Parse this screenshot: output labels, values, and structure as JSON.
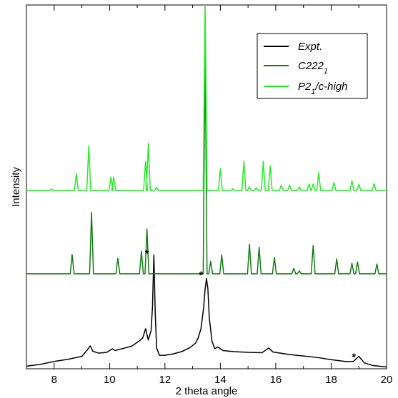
{
  "chart_data": {
    "type": "line",
    "title": "",
    "xlabel": "2 theta angle",
    "ylabel": "Intensity",
    "xlim": [
      7,
      20
    ],
    "ylim": [
      0,
      100
    ],
    "xticks": [
      8,
      10,
      12,
      14,
      16,
      18,
      20
    ],
    "x_tick_labels": [
      "8",
      "10",
      "12",
      "14",
      "16",
      "18",
      "20"
    ],
    "y_tick_labels_shown": false,
    "grid": false,
    "legend_position": "top-right",
    "series": [
      {
        "name": "Expt.",
        "name_main": "Expt.",
        "name_sub": "",
        "name_tail": "",
        "color": "#000000",
        "points": [
          [
            7.0,
            0.7
          ],
          [
            7.5,
            1.2
          ],
          [
            8.0,
            2.0
          ],
          [
            8.5,
            2.6
          ],
          [
            9.0,
            3.4
          ],
          [
            9.2,
            5.2
          ],
          [
            9.3,
            6.3
          ],
          [
            9.4,
            4.8
          ],
          [
            9.6,
            4.3
          ],
          [
            9.9,
            4.5
          ],
          [
            10.1,
            5.5
          ],
          [
            10.2,
            5.0
          ],
          [
            10.5,
            5.6
          ],
          [
            10.8,
            6.2
          ],
          [
            11.1,
            7.8
          ],
          [
            11.2,
            8.5
          ],
          [
            11.3,
            11.0
          ],
          [
            11.4,
            7.9
          ],
          [
            11.5,
            10.5
          ],
          [
            11.55,
            17.0
          ],
          [
            11.6,
            31.3
          ],
          [
            11.65,
            15.0
          ],
          [
            11.7,
            5.7
          ],
          [
            11.8,
            3.7
          ],
          [
            12.0,
            3.7
          ],
          [
            12.3,
            4.1
          ],
          [
            12.6,
            4.7
          ],
          [
            12.9,
            5.8
          ],
          [
            13.1,
            7.0
          ],
          [
            13.2,
            8.5
          ],
          [
            13.3,
            11.0
          ],
          [
            13.4,
            17.0
          ],
          [
            13.45,
            22.0
          ],
          [
            13.5,
            24.8
          ],
          [
            13.55,
            22.0
          ],
          [
            13.6,
            14.0
          ],
          [
            13.7,
            7.5
          ],
          [
            13.8,
            5.5
          ],
          [
            13.9,
            6.0
          ],
          [
            14.1,
            5.0
          ],
          [
            14.5,
            4.7
          ],
          [
            15.0,
            4.5
          ],
          [
            15.5,
            4.4
          ],
          [
            15.75,
            5.7
          ],
          [
            15.9,
            4.6
          ],
          [
            16.5,
            3.9
          ],
          [
            17.0,
            3.5
          ],
          [
            17.5,
            3.1
          ],
          [
            18.0,
            2.5
          ],
          [
            18.5,
            2.0
          ],
          [
            18.8,
            2.0
          ],
          [
            19.0,
            3.4
          ],
          [
            19.2,
            1.6
          ],
          [
            19.5,
            0.9
          ],
          [
            20.0,
            0.5
          ]
        ]
      },
      {
        "name": "C222_1",
        "name_main": "C222",
        "name_sub": "1",
        "name_tail": "",
        "color": "#0f7d0f",
        "baseline": 26.1,
        "peaks": [
          [
            8.65,
            5.3
          ],
          [
            9.35,
            16.9
          ],
          [
            10.3,
            4.3
          ],
          [
            11.15,
            6.2
          ],
          [
            11.35,
            12.3
          ],
          [
            13.45,
            61.6
          ],
          [
            13.65,
            3.4
          ],
          [
            14.05,
            5.2
          ],
          [
            15.05,
            8.1
          ],
          [
            15.4,
            7.3
          ],
          [
            15.95,
            4.5
          ],
          [
            16.65,
            1.5
          ],
          [
            16.85,
            0.8
          ],
          [
            17.35,
            7.8
          ],
          [
            18.2,
            4.1
          ],
          [
            18.75,
            2.9
          ],
          [
            18.95,
            3.3
          ],
          [
            19.65,
            2.7
          ]
        ]
      },
      {
        "name": "P2_1/c-high",
        "name_main": "P2",
        "name_sub": "1",
        "name_tail": "/c-high",
        "color": "#22ee22",
        "baseline": 49.0,
        "peaks": [
          [
            7.9,
            0.4
          ],
          [
            8.8,
            4.6
          ],
          [
            9.25,
            12.3
          ],
          [
            10.05,
            3.7
          ],
          [
            10.15,
            3.7
          ],
          [
            11.3,
            8.0
          ],
          [
            11.4,
            12.9
          ],
          [
            11.7,
            0.9
          ],
          [
            13.45,
            51.4
          ],
          [
            14.0,
            6.0
          ],
          [
            14.45,
            0.5
          ],
          [
            14.85,
            8.1
          ],
          [
            15.05,
            1.0
          ],
          [
            15.3,
            0.8
          ],
          [
            15.55,
            8.0
          ],
          [
            15.8,
            6.7
          ],
          [
            16.2,
            1.5
          ],
          [
            16.5,
            1.5
          ],
          [
            16.85,
            1.0
          ],
          [
            17.2,
            1.8
          ],
          [
            17.35,
            1.8
          ],
          [
            17.55,
            4.9
          ],
          [
            18.1,
            2.2
          ],
          [
            18.75,
            2.7
          ],
          [
            19.0,
            1.7
          ],
          [
            19.55,
            1.9
          ]
        ]
      }
    ],
    "annotations": [
      {
        "text": "*",
        "x": 11.35,
        "y": 32.6
      },
      {
        "text": "*",
        "x": 13.3,
        "y": 26.8
      },
      {
        "text": "*",
        "x": 18.82,
        "y": 4.2
      }
    ]
  }
}
